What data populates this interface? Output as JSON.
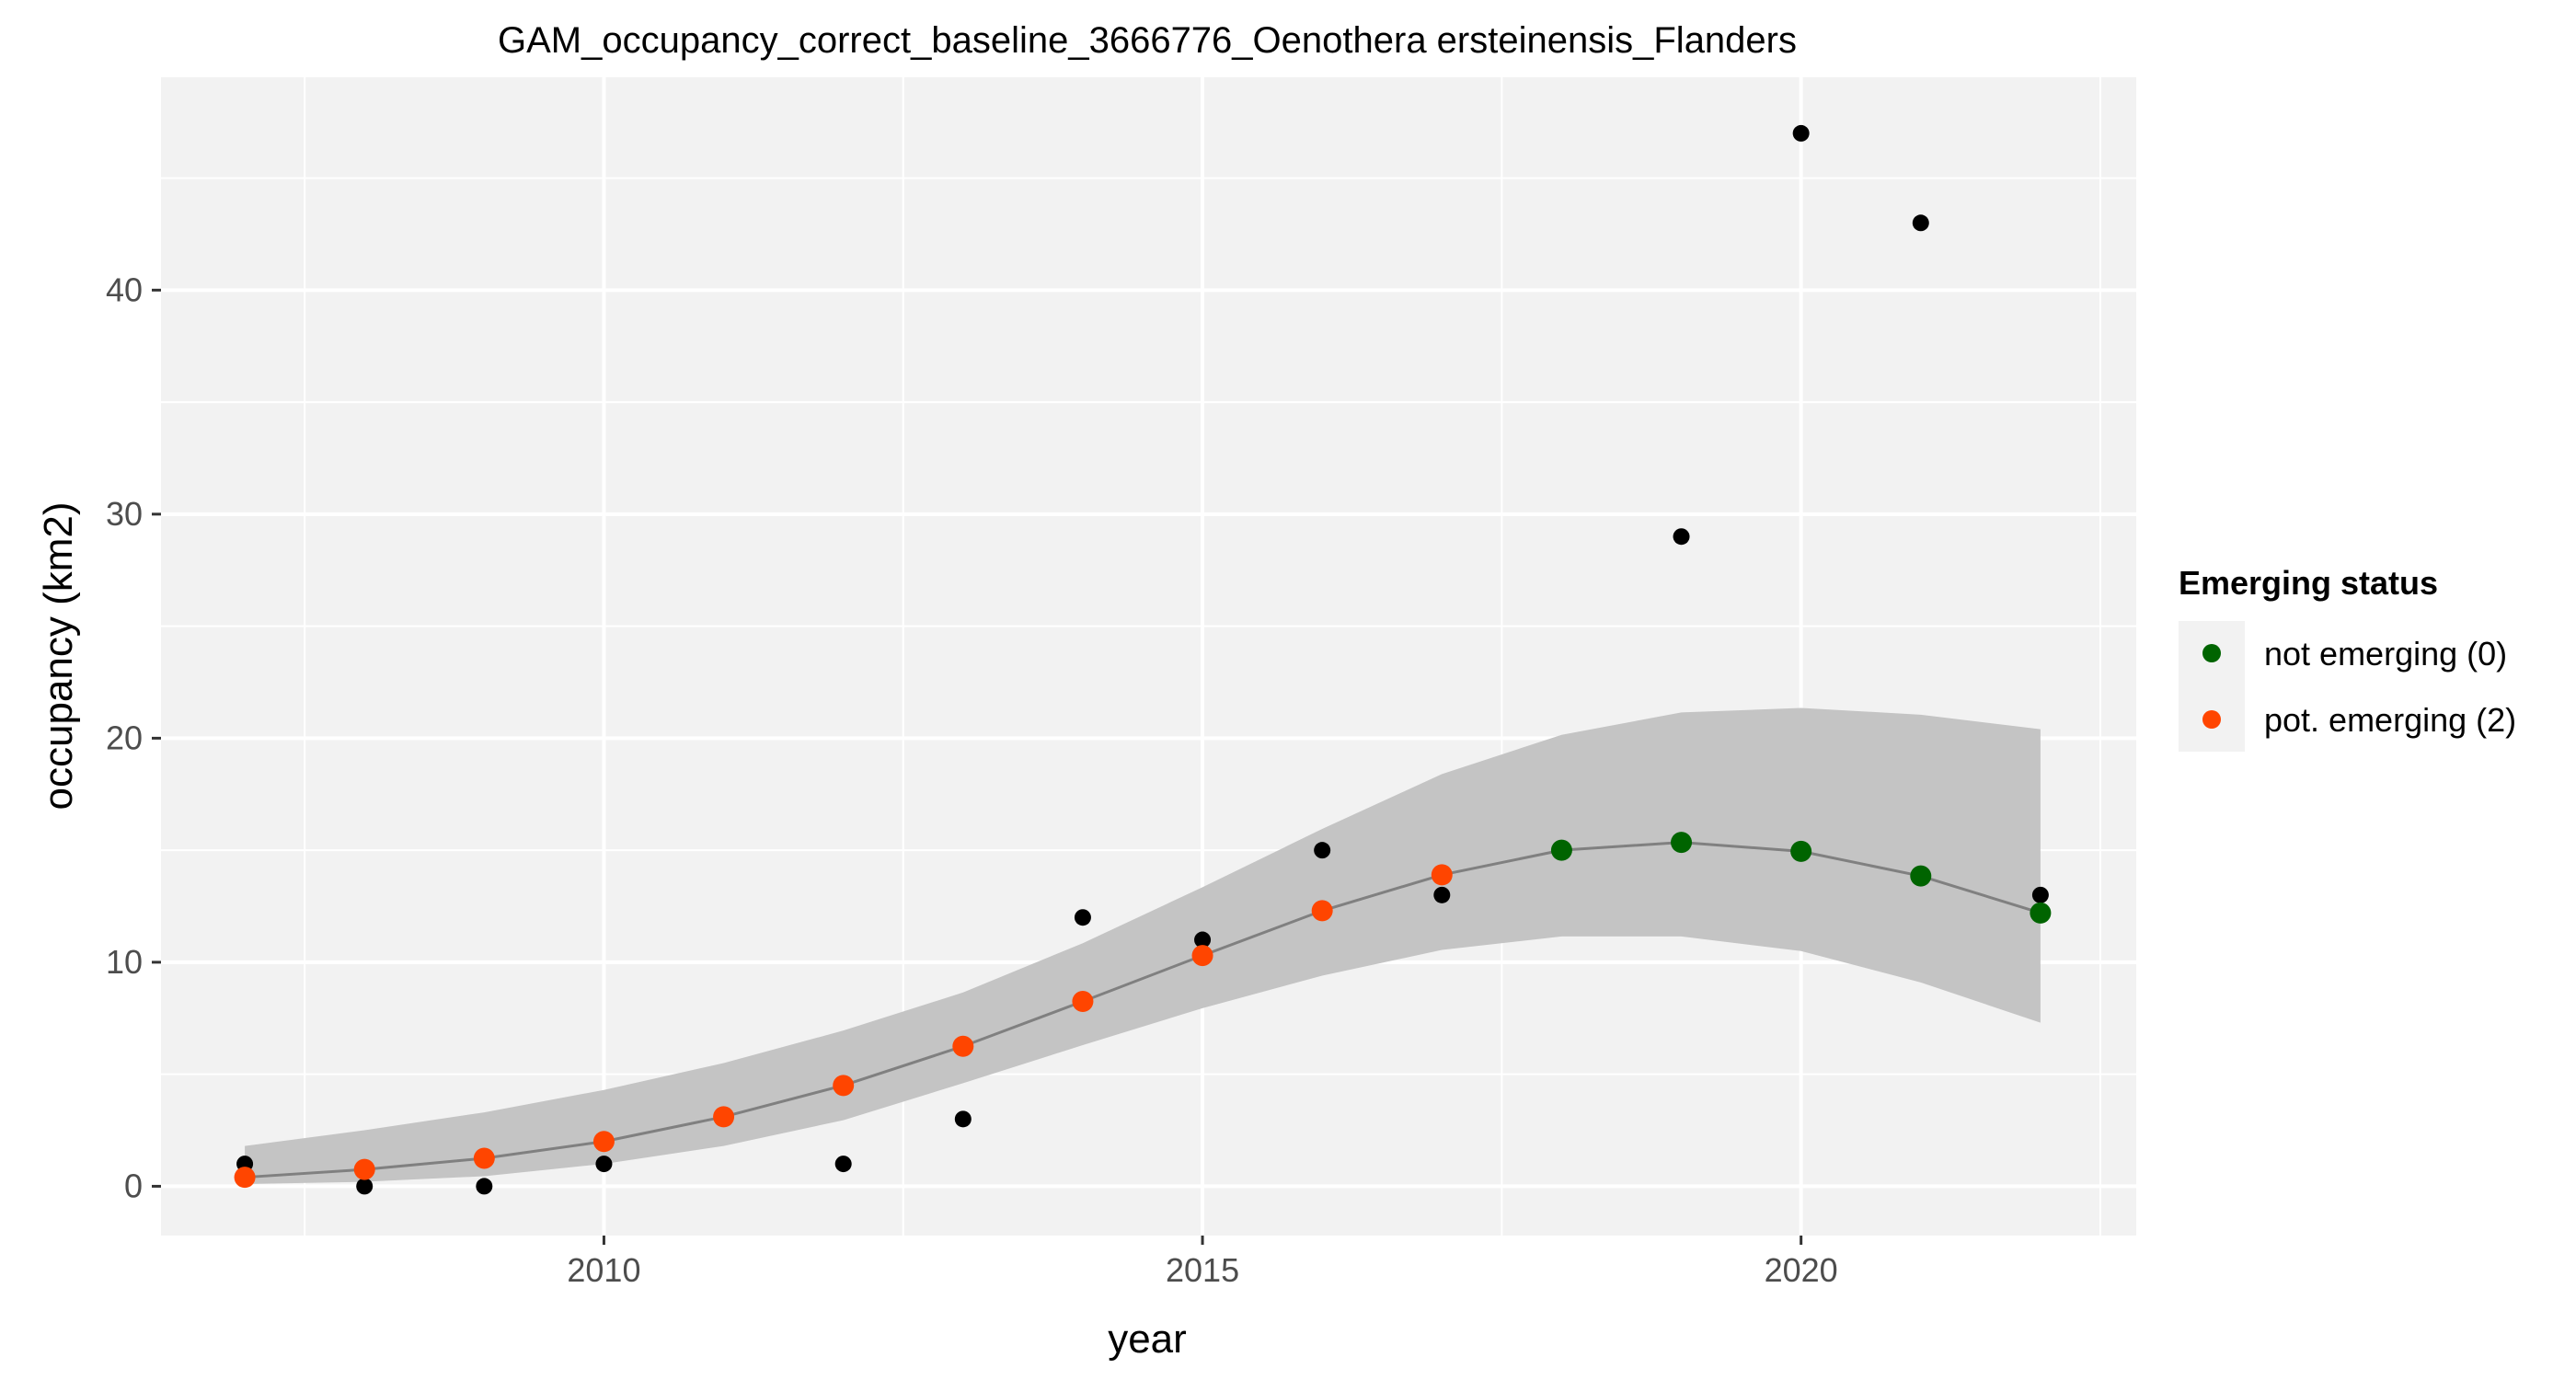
{
  "chart_data": {
    "type": "scatter",
    "title": "GAM_occupancy_correct_baseline_3666776_Oenothera ersteinensis_Flanders",
    "xlabel": "year",
    "ylabel": "occupancy (km2)",
    "xlim": [
      2006.3,
      2022.8
    ],
    "ylim": [
      -2.2,
      49.5
    ],
    "x_ticks": [
      2010,
      2015,
      2020
    ],
    "y_ticks": [
      0,
      10,
      20,
      30,
      40
    ],
    "x_tick_labels": [
      "2010",
      "2015",
      "2020"
    ],
    "y_tick_labels": [
      "0",
      "10",
      "20",
      "30",
      "40"
    ],
    "grid": true,
    "legend_position": "right",
    "observed": {
      "x": [
        2007,
        2008,
        2009,
        2010,
        2012,
        2013,
        2014,
        2015,
        2016,
        2017,
        2019,
        2020,
        2021,
        2022
      ],
      "y": [
        1,
        0,
        0,
        1,
        1,
        3,
        12,
        11,
        15,
        13,
        29,
        47,
        43,
        13
      ]
    },
    "fit": {
      "x": [
        2007,
        2008,
        2009,
        2010,
        2011,
        2012,
        2013,
        2014,
        2015,
        2016,
        2017,
        2018,
        2019,
        2020,
        2021,
        2022
      ],
      "y": [
        0.4,
        0.75,
        1.25,
        2.0,
        3.1,
        4.5,
        6.25,
        8.25,
        10.3,
        12.3,
        13.9,
        15.0,
        15.35,
        14.95,
        13.85,
        12.2
      ],
      "lower": [
        0.1,
        0.2,
        0.45,
        1.0,
        1.8,
        2.95,
        4.6,
        6.3,
        7.95,
        9.4,
        10.55,
        11.15,
        11.15,
        10.5,
        9.1,
        7.3
      ],
      "upper": [
        1.8,
        2.5,
        3.3,
        4.3,
        5.5,
        6.95,
        8.65,
        10.85,
        13.35,
        15.95,
        18.4,
        20.15,
        21.15,
        21.35,
        21.05,
        20.4
      ],
      "status": [
        2,
        2,
        2,
        2,
        2,
        2,
        2,
        2,
        2,
        2,
        2,
        0,
        0,
        0,
        0,
        0
      ]
    },
    "legend": {
      "title": "Emerging status",
      "items": [
        {
          "label": "not emerging (0)",
          "color": "#006400",
          "status": 0
        },
        {
          "label": "pot. emerging (2)",
          "color": "#FF4500",
          "status": 2
        }
      ]
    },
    "colors": {
      "panel_background": "#f2f2f2",
      "grid": "#ffffff",
      "ribbon": "#c4c4c4",
      "line": "#808080",
      "observed": "#000000"
    }
  }
}
